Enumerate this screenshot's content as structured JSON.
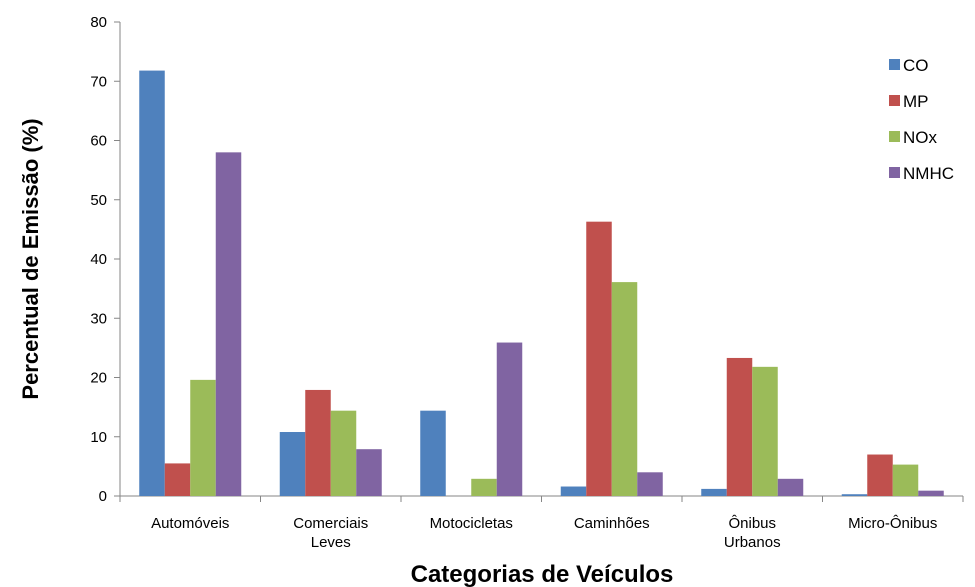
{
  "chart_data": {
    "type": "bar",
    "xlabel": "Categorias de Veículos",
    "ylabel": "Percentual de Emissão (%)",
    "ylim": [
      0,
      80
    ],
    "yticks": [
      0,
      10,
      20,
      30,
      40,
      50,
      60,
      70,
      80
    ],
    "grid": false,
    "legend_position": "top-right",
    "categories": [
      [
        "Automóveis"
      ],
      [
        "Comerciais",
        "Leves"
      ],
      [
        "Motocicletas"
      ],
      [
        "Caminhões"
      ],
      [
        "Ônibus",
        "Urbanos"
      ],
      [
        "Micro-Ônibus"
      ]
    ],
    "series": [
      {
        "name": "CO",
        "color": "#4f81bd",
        "values": [
          71.8,
          10.8,
          14.4,
          1.6,
          1.2,
          0.3
        ]
      },
      {
        "name": "MP",
        "color": "#c0504d",
        "values": [
          5.5,
          17.9,
          0,
          46.3,
          23.3,
          7.0
        ]
      },
      {
        "name": "NOx",
        "color": "#9bbb59",
        "values": [
          19.6,
          14.4,
          2.9,
          36.1,
          21.8,
          5.3
        ]
      },
      {
        "name": "NMHC",
        "color": "#8064a2",
        "values": [
          58.0,
          7.9,
          25.9,
          4.0,
          2.9,
          0.9
        ]
      }
    ]
  }
}
